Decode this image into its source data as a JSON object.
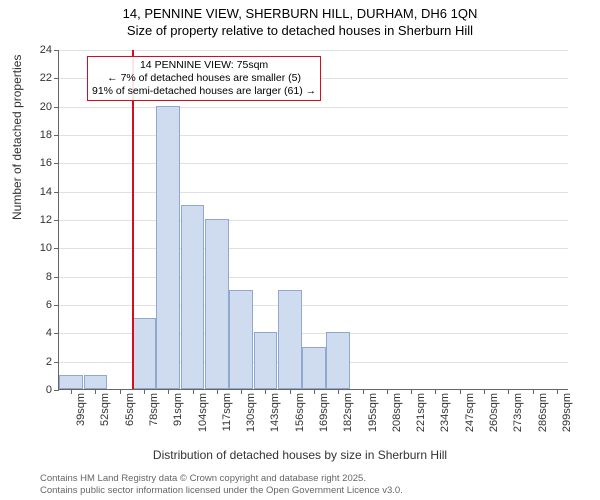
{
  "title": {
    "line1": "14, PENNINE VIEW, SHERBURN HILL, DURHAM, DH6 1QN",
    "line2": "Size of property relative to detached houses in Sherburn Hill"
  },
  "chart": {
    "type": "histogram",
    "x_axis_label": "Distribution of detached houses by size in Sherburn Hill",
    "y_axis_label": "Number of detached properties",
    "ylim": [
      0,
      24
    ],
    "ytick_step": 2,
    "yticks": [
      0,
      2,
      4,
      6,
      8,
      10,
      12,
      14,
      16,
      18,
      20,
      22,
      24
    ],
    "x_categories": [
      "39sqm",
      "52sqm",
      "65sqm",
      "78sqm",
      "91sqm",
      "104sqm",
      "117sqm",
      "130sqm",
      "143sqm",
      "156sqm",
      "169sqm",
      "182sqm",
      "195sqm",
      "208sqm",
      "221sqm",
      "234sqm",
      "247sqm",
      "260sqm",
      "273sqm",
      "286sqm",
      "299sqm"
    ],
    "values": [
      1,
      1,
      0,
      5,
      20,
      13,
      12,
      7,
      4,
      7,
      3,
      4,
      0,
      0,
      0,
      0,
      0,
      0,
      0,
      0,
      0
    ],
    "bar_fill": "#cfdcf0",
    "bar_border": "#8fa8d0",
    "grid_color": "#e0e0e0",
    "axis_color": "#666666",
    "background_color": "#ffffff",
    "marker": {
      "color": "#d01020",
      "category_index": 3,
      "fraction_within_bin": 0.0
    },
    "annotation": {
      "line1": "14 PENNINE VIEW: 75sqm",
      "line2": "← 7% of detached houses are smaller (5)",
      "line3": "91% of semi-detached houses are larger (61) →",
      "border_color": "#d01020"
    },
    "title_fontsize": 13,
    "axis_label_fontsize": 12,
    "tick_fontsize": 11
  },
  "footer": {
    "line1": "Contains HM Land Registry data © Crown copyright and database right 2025.",
    "line2": "Contains public sector information licensed under the Open Government Licence v3.0."
  }
}
